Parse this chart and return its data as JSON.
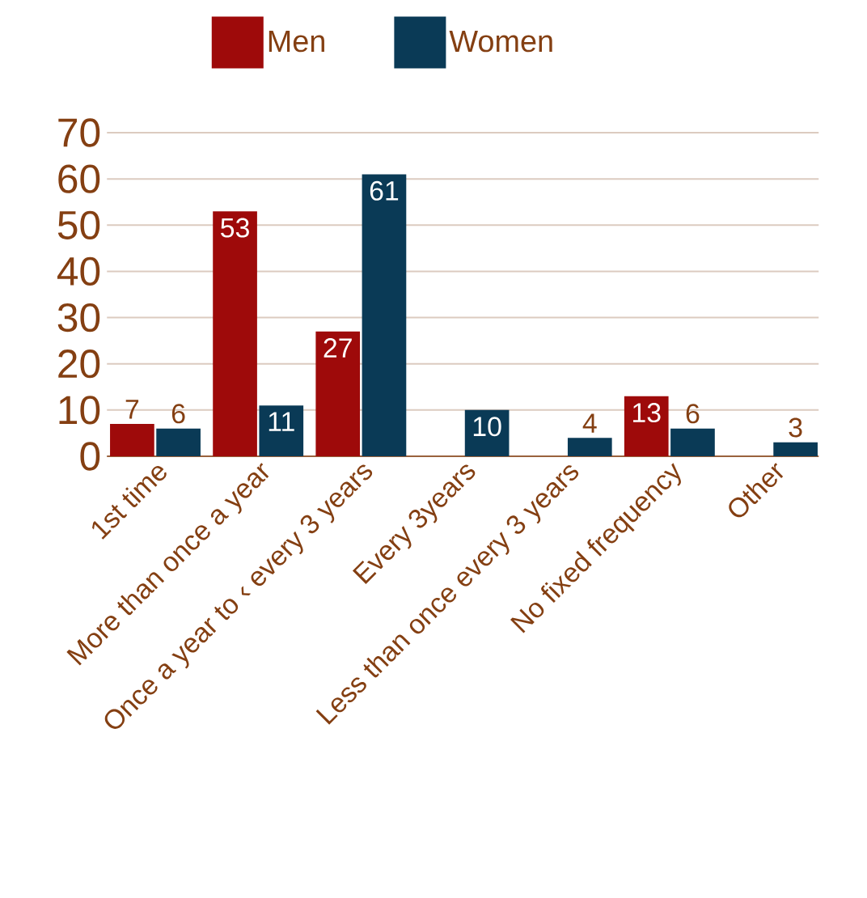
{
  "chart_data": {
    "type": "bar",
    "categories": [
      "1st time",
      "More than once a year",
      "Once a year to ‹ every 3 years",
      "Every 3years",
      "Less than once every 3 years",
      "No fixed frequency",
      "Other"
    ],
    "series": [
      {
        "name": "Men",
        "color": "#9e0a0a",
        "values": [
          7,
          53,
          27,
          null,
          null,
          13,
          null
        ]
      },
      {
        "name": "Women",
        "color": "#0a3a56",
        "values": [
          6,
          11,
          61,
          10,
          4,
          6,
          3
        ]
      }
    ],
    "ylim": [
      0,
      70
    ],
    "yticks": [
      0,
      10,
      20,
      30,
      40,
      50,
      60,
      70
    ],
    "grid": "y",
    "legend": "top",
    "data_labels": true
  }
}
